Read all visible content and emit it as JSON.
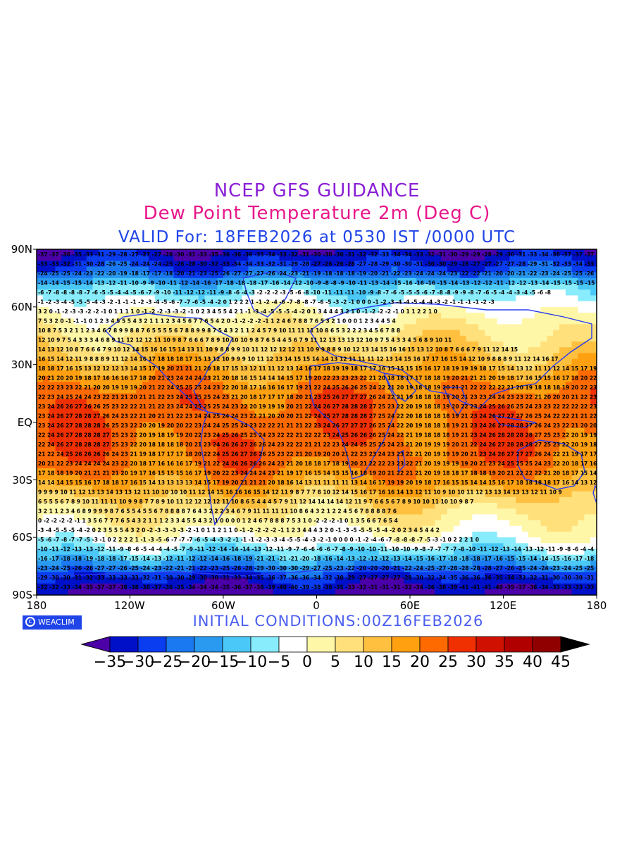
{
  "titles": {
    "line1": "NCEP GFS GUIDANCE",
    "line2": "Dew Point Temperature 2m (Deg C)",
    "line3": "VALID For: 18FEB2026 at 0530 IST /0000 UTC"
  },
  "colors": {
    "line1": "#8a1fd6",
    "line2": "#e8178a",
    "line3": "#1f44e8",
    "init": "#4a5ef0",
    "frame": "#1028c8",
    "coast": "#2a3cf0"
  },
  "axes": {
    "y_labels": [
      "90N",
      "60N",
      "30N",
      "EQ",
      "30S",
      "60S",
      "90S"
    ],
    "x_labels": [
      "180",
      "120W",
      "60W",
      "0",
      "60E",
      "120E",
      "180"
    ]
  },
  "logo": "WEACLIM",
  "initial_conditions": "INITIAL CONDITIONS:00Z16FEB2026",
  "colorbar": {
    "labels": [
      "-35",
      "-30",
      "-25",
      "-20",
      "-15",
      "-10",
      "-5",
      "0",
      "5",
      "10",
      "15",
      "20",
      "25",
      "30",
      "35",
      "40",
      "45"
    ],
    "colors": [
      "#4b00a8",
      "#0010c8",
      "#0a3cf0",
      "#1a78f0",
      "#2a9af0",
      "#4ac8f8",
      "#88ecfc",
      "#ffffff",
      "#fff7a8",
      "#ffe07a",
      "#ffc040",
      "#ffa010",
      "#ff6a00",
      "#f03000",
      "#d01000",
      "#b00000",
      "#900000",
      "#000000"
    ]
  },
  "map_field": {
    "description_of_rows_note": "",
    "bands": [
      {
        "lat": 90,
        "value": -35
      },
      {
        "lat": 80,
        "value": -28
      },
      {
        "lat": 70,
        "value": -10
      },
      {
        "lat": 60,
        "value": -2
      },
      {
        "lat": 50,
        "value": 4
      },
      {
        "lat": 40,
        "value": 9
      },
      {
        "lat": 30,
        "value": 14
      },
      {
        "lat": 20,
        "value": 20
      },
      {
        "lat": 10,
        "value": 23
      },
      {
        "lat": 0,
        "value": 23
      },
      {
        "lat": -10,
        "value": 23
      },
      {
        "lat": -20,
        "value": 22
      },
      {
        "lat": -30,
        "value": 18
      },
      {
        "lat": -40,
        "value": 10
      },
      {
        "lat": -50,
        "value": 4
      },
      {
        "lat": -60,
        "value": -1
      },
      {
        "lat": -70,
        "value": -12
      },
      {
        "lat": -80,
        "value": -30
      },
      {
        "lat": -90,
        "value": -38
      }
    ],
    "sample_rows": [
      "35-35-34-36-33-27-35-35-35-35-37-40-37-41-40-39-40-38-34-35-33-32",
      "1 1 6 7 7 7 -2 1 0 2 -1 3 -1 2 0 2 0 1 4 8 12 11 3",
      "21 21 19 17 19 20 20 19 18 19 20 22 21 22 22 21 20 20 18 17 18 18",
      "23 23 23 23 22 23 23 22 22 23 21 23 23 23 24 24 24 24 23 23 23 23",
      "24 24 23 23 23 23 23 22 22 22 22 21 22 22 22 23 23 24 23 24 23 23",
      "24 23 24 24 23 22 22 23 21 20 19 19 17 17 18 18 16 17 19 18 19 21",
      "5 15 11 11 10 13 15 17 18 19 16 9 8 7 7 7 9 16 17 18 16 14 13",
      "1 12 10 8 7 4 3 5 4 9 8 8 9 8 5 3 3 5 6 8 7 6 4 0 7 3 3 4 2 0",
      "-8 -8 -6 -5 -4 -6 -6 -2 -2 -2 -6 -4 -1 -1 -0 -2 -3 -4 -4 -6 -7 -8"
    ]
  }
}
